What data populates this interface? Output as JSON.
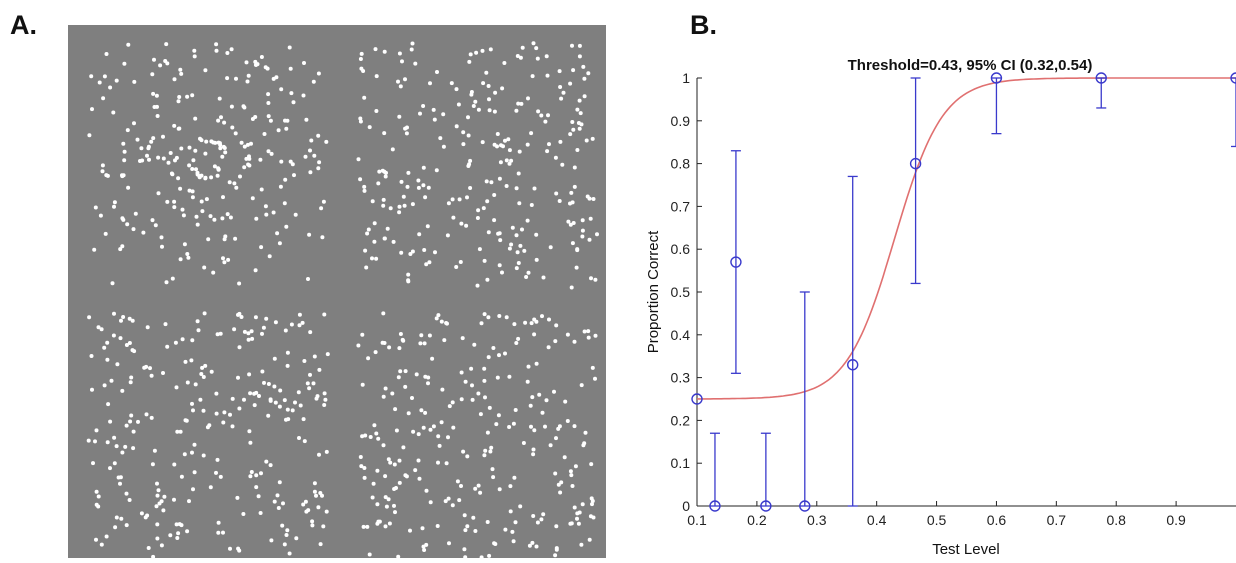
{
  "panels": {
    "a_label": "A.",
    "b_label": "B."
  },
  "colors": {
    "stimulus_background": "#7f7f7f",
    "dot": "#ffffff",
    "data_marker": "#3a3acc",
    "fit_curve": "#e07070"
  },
  "stimulus": {
    "layout": "2x2 grid of random dot fields",
    "patterns": [
      "concentric-circular",
      "random",
      "random",
      "random"
    ]
  },
  "chart_data": {
    "type": "scatter",
    "title": "Threshold=0.43, 95% CI (0.32,0.54)",
    "xlabel": "Test Level",
    "ylabel": "Proportion Correct",
    "xlim": [
      0.1,
      1.0
    ],
    "ylim": [
      0,
      1
    ],
    "xticks": [
      "0.1",
      "0.2",
      "0.3",
      "0.4",
      "0.5",
      "0.6",
      "0.7",
      "0.8",
      "0.9"
    ],
    "yticks": [
      "0",
      "0.1",
      "0.2",
      "0.3",
      "0.4",
      "0.5",
      "0.6",
      "0.7",
      "0.8",
      "0.9",
      "1"
    ],
    "grid": false,
    "series": [
      {
        "markers": "open-circle",
        "error_bars": true,
        "points": [
          {
            "x": 0.1,
            "y": 0.25
          },
          {
            "x": 0.13,
            "y": 0.0,
            "lo": 0.0,
            "hi": 0.17
          },
          {
            "x": 0.165,
            "y": 0.57,
            "lo": 0.31,
            "hi": 0.83
          },
          {
            "x": 0.215,
            "y": 0.0,
            "lo": 0.0,
            "hi": 0.17
          },
          {
            "x": 0.28,
            "y": 0.0,
            "lo": 0.0,
            "hi": 0.5
          },
          {
            "x": 0.36,
            "y": 0.33,
            "lo": 0.0,
            "hi": 0.77
          },
          {
            "x": 0.465,
            "y": 0.8,
            "lo": 0.52,
            "hi": 1.0
          },
          {
            "x": 0.6,
            "y": 1.0,
            "lo": 0.87,
            "hi": 1.0
          },
          {
            "x": 0.775,
            "y": 1.0,
            "lo": 0.93,
            "hi": 1.0
          },
          {
            "x": 1.0,
            "y": 1.0,
            "lo": 0.84,
            "hi": 1.0
          }
        ]
      },
      {
        "curve": "logistic-fit",
        "guess_rate": 0.25,
        "threshold": 0.43,
        "slope": 25
      }
    ]
  }
}
